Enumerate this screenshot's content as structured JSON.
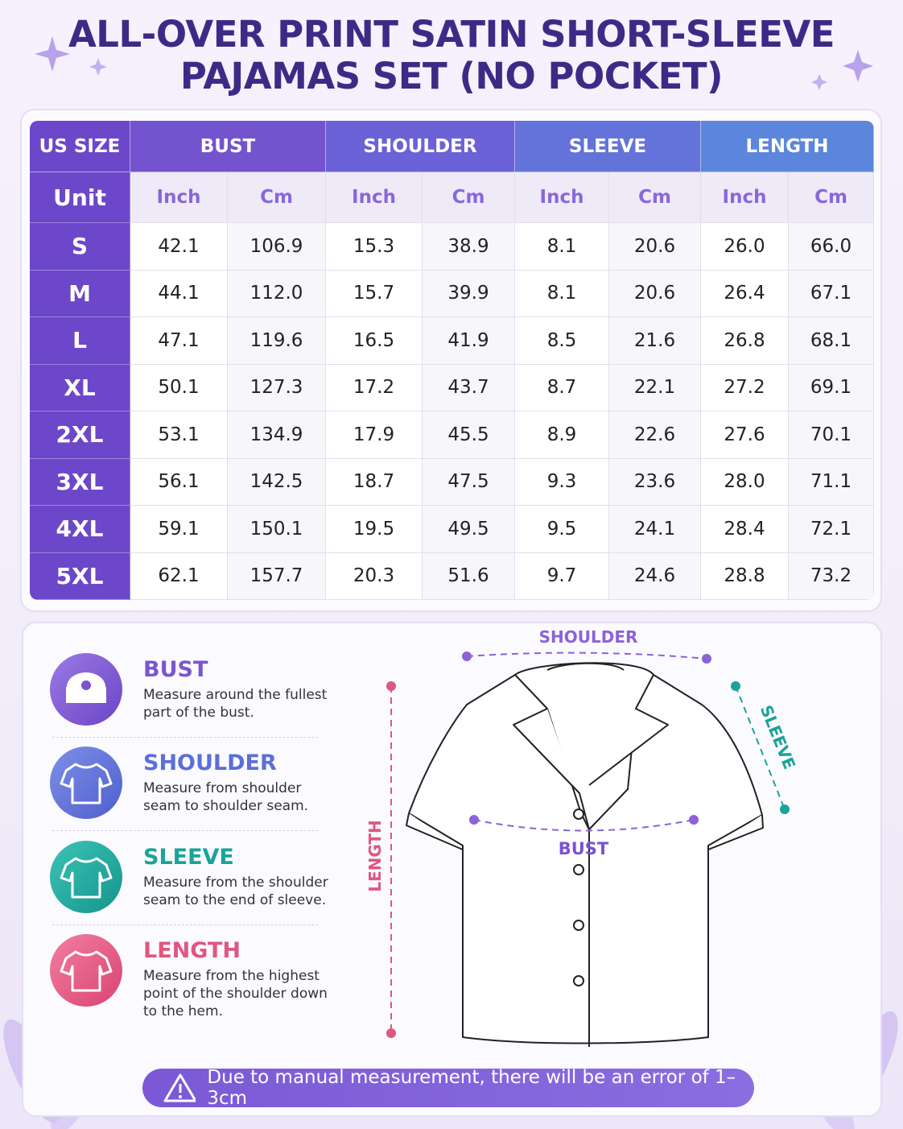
{
  "title": [
    "ALL-OVER PRINT SATIN SHORT-SLEEVE",
    "PAJAMAS SET (NO POCKET)"
  ],
  "table": {
    "header": [
      "US SIZE",
      "BUST",
      "SHOULDER",
      "SLEEVE",
      "LENGTH"
    ],
    "unit_row": [
      "Unit",
      "Inch",
      "Cm",
      "Inch",
      "Cm",
      "Inch",
      "Cm",
      "Inch",
      "Cm"
    ],
    "rows": [
      [
        "S",
        "42.1",
        "106.9",
        "15.3",
        "38.9",
        "8.1",
        "20.6",
        "26.0",
        "66.0"
      ],
      [
        "M",
        "44.1",
        "112.0",
        "15.7",
        "39.9",
        "8.1",
        "20.6",
        "26.4",
        "67.1"
      ],
      [
        "L",
        "47.1",
        "119.6",
        "16.5",
        "41.9",
        "8.5",
        "21.6",
        "26.8",
        "68.1"
      ],
      [
        "XL",
        "50.1",
        "127.3",
        "17.2",
        "43.7",
        "8.7",
        "22.1",
        "27.2",
        "69.1"
      ],
      [
        "2XL",
        "53.1",
        "134.9",
        "17.9",
        "45.5",
        "8.9",
        "22.6",
        "27.6",
        "70.1"
      ],
      [
        "3XL",
        "56.1",
        "142.5",
        "18.7",
        "47.5",
        "9.3",
        "23.6",
        "28.0",
        "71.1"
      ],
      [
        "4XL",
        "59.1",
        "150.1",
        "19.5",
        "49.5",
        "9.5",
        "24.1",
        "28.4",
        "72.1"
      ],
      [
        "5XL",
        "62.1",
        "157.7",
        "20.3",
        "51.6",
        "9.7",
        "24.6",
        "28.8",
        "73.2"
      ]
    ]
  },
  "guide": [
    {
      "title": "BUST",
      "text": "Measure around the fullest part of the bust."
    },
    {
      "title": "SHOULDER",
      "text": "Measure from shoulder seam to shoulder seam."
    },
    {
      "title": "SLEEVE",
      "text": "Measure from the shoulder seam to the end of sleeve."
    },
    {
      "title": "LENGTH",
      "text": "Measure from the highest point of the shoulder down to the hem."
    }
  ],
  "diagram": {
    "shoulder": "SHOULDER",
    "sleeve": "SLEEVE",
    "bust": "BUST",
    "length": "LENGTH"
  },
  "note": "Due to manual measurement, there will be an error of 1–3cm"
}
